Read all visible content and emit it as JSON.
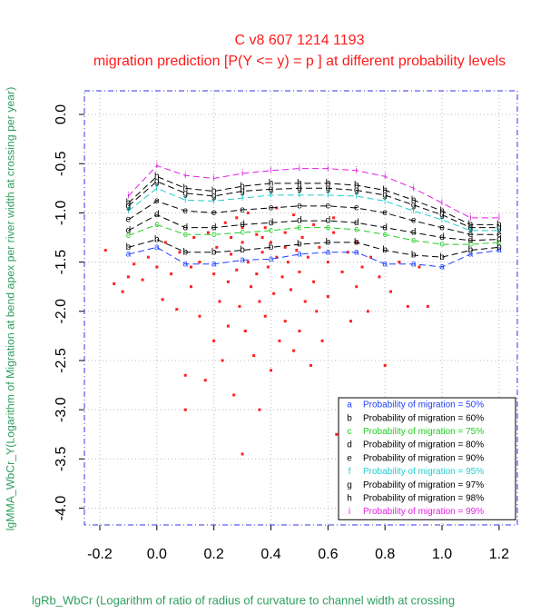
{
  "chart_data": {
    "type": "scatter",
    "title": "C v8 607 1214 1193",
    "subtitle": "migration prediction [P(Y <= y) = p ] at different probability levels",
    "x_label": "lgRb_WbCr (Logarithm of ratio of radius of curvature to channel width at crossing",
    "y_label": "lgMMA_WbCr_Y(Logarithm of Migration at bend apex per river width at crossing per year)",
    "xlim": [
      -0.254,
      1.264
    ],
    "ylim": [
      -4.17,
      0.24
    ],
    "xticks": [
      -0.2,
      {
        "value": 0,
        "label": "0.0"
      },
      0.2,
      0.4,
      0.6,
      0.8,
      {
        "value": 1,
        "label": "1.0"
      },
      1.2
    ],
    "yticks": [
      {
        "value": 0,
        "label": "0.0"
      },
      -0.5,
      {
        "value": -1,
        "label": "-1.0"
      },
      -1.5,
      {
        "value": -2,
        "label": "-2.0"
      },
      -2.5,
      {
        "value": -3,
        "label": "-3.0"
      },
      -3.5,
      {
        "value": -4,
        "label": "-4.0"
      }
    ],
    "grid": true,
    "legend": "bottom-right",
    "points": {
      "color": "#ff2020",
      "x": [
        -0.18,
        -0.15,
        -0.12,
        -0.1,
        -0.08,
        -0.05,
        -0.03,
        0.0,
        0.02,
        0.03,
        0.05,
        0.07,
        0.08,
        0.1,
        0.1,
        0.12,
        0.13,
        0.15,
        0.15,
        0.17,
        0.18,
        0.2,
        0.2,
        0.21,
        0.22,
        0.23,
        0.24,
        0.25,
        0.25,
        0.26,
        0.27,
        0.28,
        0.28,
        0.29,
        0.3,
        0.3,
        0.31,
        0.32,
        0.32,
        0.33,
        0.34,
        0.35,
        0.35,
        0.36,
        0.36,
        0.37,
        0.38,
        0.38,
        0.39,
        0.4,
        0.4,
        0.41,
        0.42,
        0.42,
        0.43,
        0.44,
        0.45,
        0.45,
        0.46,
        0.47,
        0.48,
        0.48,
        0.49,
        0.5,
        0.5,
        0.51,
        0.52,
        0.53,
        0.54,
        0.55,
        0.55,
        0.56,
        0.57,
        0.58,
        0.6,
        0.6,
        0.62,
        0.63,
        0.65,
        0.65,
        0.67,
        0.68,
        0.7,
        0.7,
        0.72,
        0.74,
        0.75,
        0.78,
        0.8,
        0.82,
        0.85,
        0.88,
        0.92,
        0.95,
        0.3,
        0.37,
        0.12,
        0.62,
        0.26,
        0.45
      ],
      "values": [
        -1.38,
        -1.72,
        -1.8,
        -1.65,
        -1.52,
        -1.68,
        -1.45,
        -1.55,
        -1.88,
        -1.3,
        -1.62,
        -1.98,
        -1.4,
        -2.65,
        -3.0,
        -1.75,
        -1.25,
        -2.05,
        -1.5,
        -2.7,
        -1.2,
        -2.3,
        -1.62,
        -1.35,
        -1.9,
        -2.5,
        -1.1,
        -1.7,
        -2.15,
        -1.42,
        -2.85,
        -1.58,
        -1.05,
        -1.95,
        -3.45,
        -1.3,
        -2.2,
        -1.5,
        -1.0,
        -1.75,
        -2.45,
        -1.22,
        -1.62,
        -3.0,
        -1.9,
        -1.4,
        -1.15,
        -2.05,
        -1.55,
        -1.3,
        -2.6,
        -1.82,
        -0.95,
        -1.45,
        -2.3,
        -1.65,
        -1.2,
        -2.1,
        -1.5,
        -1.78,
        -1.02,
        -2.4,
        -1.38,
        -1.6,
        -2.2,
        -1.25,
        -1.9,
        -1.45,
        -2.55,
        -1.12,
        -1.7,
        -2.0,
        -1.35,
        -2.3,
        -1.5,
        -1.85,
        -1.2,
        -3.25,
        -1.6,
        -2.9,
        -1.4,
        -2.1,
        -1.3,
        -1.75,
        -1.55,
        -2.0,
        -1.45,
        -1.65,
        -2.55,
        -1.8,
        -1.5,
        -1.95,
        -1.55,
        -1.95,
        -1.15,
        -1.25,
        -1.55,
        -1.05,
        -1.25,
        -1.35
      ]
    },
    "x": [
      -0.1,
      0,
      0.1,
      0.2,
      0.3,
      0.4,
      0.5,
      0.6,
      0.7,
      0.8,
      0.9,
      1.0,
      1.1,
      1.2
    ],
    "series": [
      {
        "name": "Probability of migration = 50%",
        "marker": "a",
        "color": "#1f3fff",
        "values": [
          -1.42,
          -1.35,
          -1.52,
          -1.52,
          -1.48,
          -1.47,
          -1.42,
          -1.4,
          -1.4,
          -1.52,
          -1.52,
          -1.55,
          -1.42,
          -1.38
        ]
      },
      {
        "name": "Probability of migration = 60%",
        "marker": "b",
        "color": "#000000",
        "values": [
          -1.35,
          -1.27,
          -1.4,
          -1.4,
          -1.38,
          -1.35,
          -1.32,
          -1.3,
          -1.3,
          -1.38,
          -1.43,
          -1.45,
          -1.38,
          -1.35
        ]
      },
      {
        "name": "Probability of migration = 75%",
        "marker": "c",
        "color": "#22cc22",
        "values": [
          -1.23,
          -1.12,
          -1.22,
          -1.22,
          -1.2,
          -1.18,
          -1.15,
          -1.15,
          -1.17,
          -1.22,
          -1.28,
          -1.32,
          -1.32,
          -1.3
        ]
      },
      {
        "name": "Probability of migration = 80%",
        "marker": "d",
        "color": "#000000",
        "values": [
          -1.18,
          -1.02,
          -1.15,
          -1.15,
          -1.12,
          -1.1,
          -1.08,
          -1.08,
          -1.1,
          -1.15,
          -1.2,
          -1.25,
          -1.28,
          -1.27
        ]
      },
      {
        "name": "Probability of migration = 90%",
        "marker": "e",
        "color": "#000000",
        "values": [
          -1.07,
          -0.88,
          -0.98,
          -1.0,
          -0.97,
          -0.95,
          -0.93,
          -0.93,
          -0.95,
          -1.0,
          -1.08,
          -1.15,
          -1.22,
          -1.22
        ]
      },
      {
        "name": "Probability of migration = 95%",
        "marker": "f",
        "color": "#22cccc",
        "values": [
          -0.98,
          -0.75,
          -0.87,
          -0.88,
          -0.85,
          -0.82,
          -0.82,
          -0.82,
          -0.83,
          -0.88,
          -0.98,
          -1.07,
          -1.18,
          -1.18
        ]
      },
      {
        "name": "Probability of migration = 97%",
        "marker": "g",
        "color": "#000000",
        "values": [
          -0.93,
          -0.68,
          -0.8,
          -0.83,
          -0.78,
          -0.76,
          -0.75,
          -0.75,
          -0.77,
          -0.82,
          -0.92,
          -1.02,
          -1.15,
          -1.15
        ]
      },
      {
        "name": "Probability of migration = 98%",
        "marker": "h",
        "color": "#000000",
        "values": [
          -0.9,
          -0.63,
          -0.75,
          -0.78,
          -0.73,
          -0.7,
          -0.7,
          -0.7,
          -0.72,
          -0.77,
          -0.87,
          -0.98,
          -1.12,
          -1.12
        ]
      },
      {
        "name": "Probability of migration = 99%",
        "marker": "i",
        "color": "#e020e0",
        "values": [
          -0.83,
          -0.52,
          -0.62,
          -0.65,
          -0.6,
          -0.57,
          -0.55,
          -0.55,
          -0.57,
          -0.63,
          -0.75,
          -0.9,
          -1.05,
          -1.05
        ]
      }
    ]
  }
}
